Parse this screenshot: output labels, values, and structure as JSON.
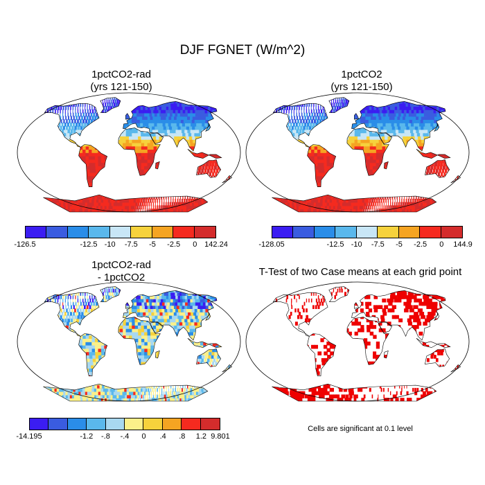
{
  "title": "DJF FGNET (W/m^2)",
  "panels": [
    {
      "title_line1": "1pctCO2-rad",
      "title_line2": "(yrs 121-150)",
      "scheme": "full",
      "colorbar": {
        "colors": [
          "#3b1df2",
          "#3a5ce0",
          "#2a8de8",
          "#5ab8ec",
          "#c8e6f6",
          "#f6d23c",
          "#f5a422",
          "#f52a1f",
          "#d42c2c"
        ],
        "labels": [
          "-126.5",
          "-12.5",
          "-10",
          "-7.5",
          "-5",
          "-2.5",
          "0",
          "142.24"
        ]
      }
    },
    {
      "title_line1": "1pctCO2",
      "title_line2": "(yrs 121-150)",
      "scheme": "full",
      "colorbar": {
        "colors": [
          "#3b1df2",
          "#3a5ce0",
          "#2a8de8",
          "#5ab8ec",
          "#c8e6f6",
          "#f6d23c",
          "#f5a422",
          "#f52a1f",
          "#d42c2c"
        ],
        "labels": [
          "-128.05",
          "-12.5",
          "-10",
          "-7.5",
          "-5",
          "-2.5",
          "0",
          "144.9"
        ]
      }
    },
    {
      "title_line1": "1pctCO2-rad",
      "title_line2": "- 1pctCO2",
      "scheme": "diff",
      "colorbar": {
        "colors": [
          "#3b1df2",
          "#3a5ce0",
          "#2a8de8",
          "#5ab8ec",
          "#a8d8f0",
          "#fbf08a",
          "#f6d23c",
          "#f5a422",
          "#f52a1f",
          "#d42c2c"
        ],
        "labels": [
          "-14.195",
          "-1.2",
          "-.8",
          "-.4",
          "0",
          ".4",
          ".8",
          "1.2",
          "9.801"
        ]
      }
    },
    {
      "title_line1": "T-Test of two Case means at each grid point",
      "title_line2": "",
      "scheme": "ttest",
      "note": "Cells are significant at 0.1 level"
    }
  ]
}
